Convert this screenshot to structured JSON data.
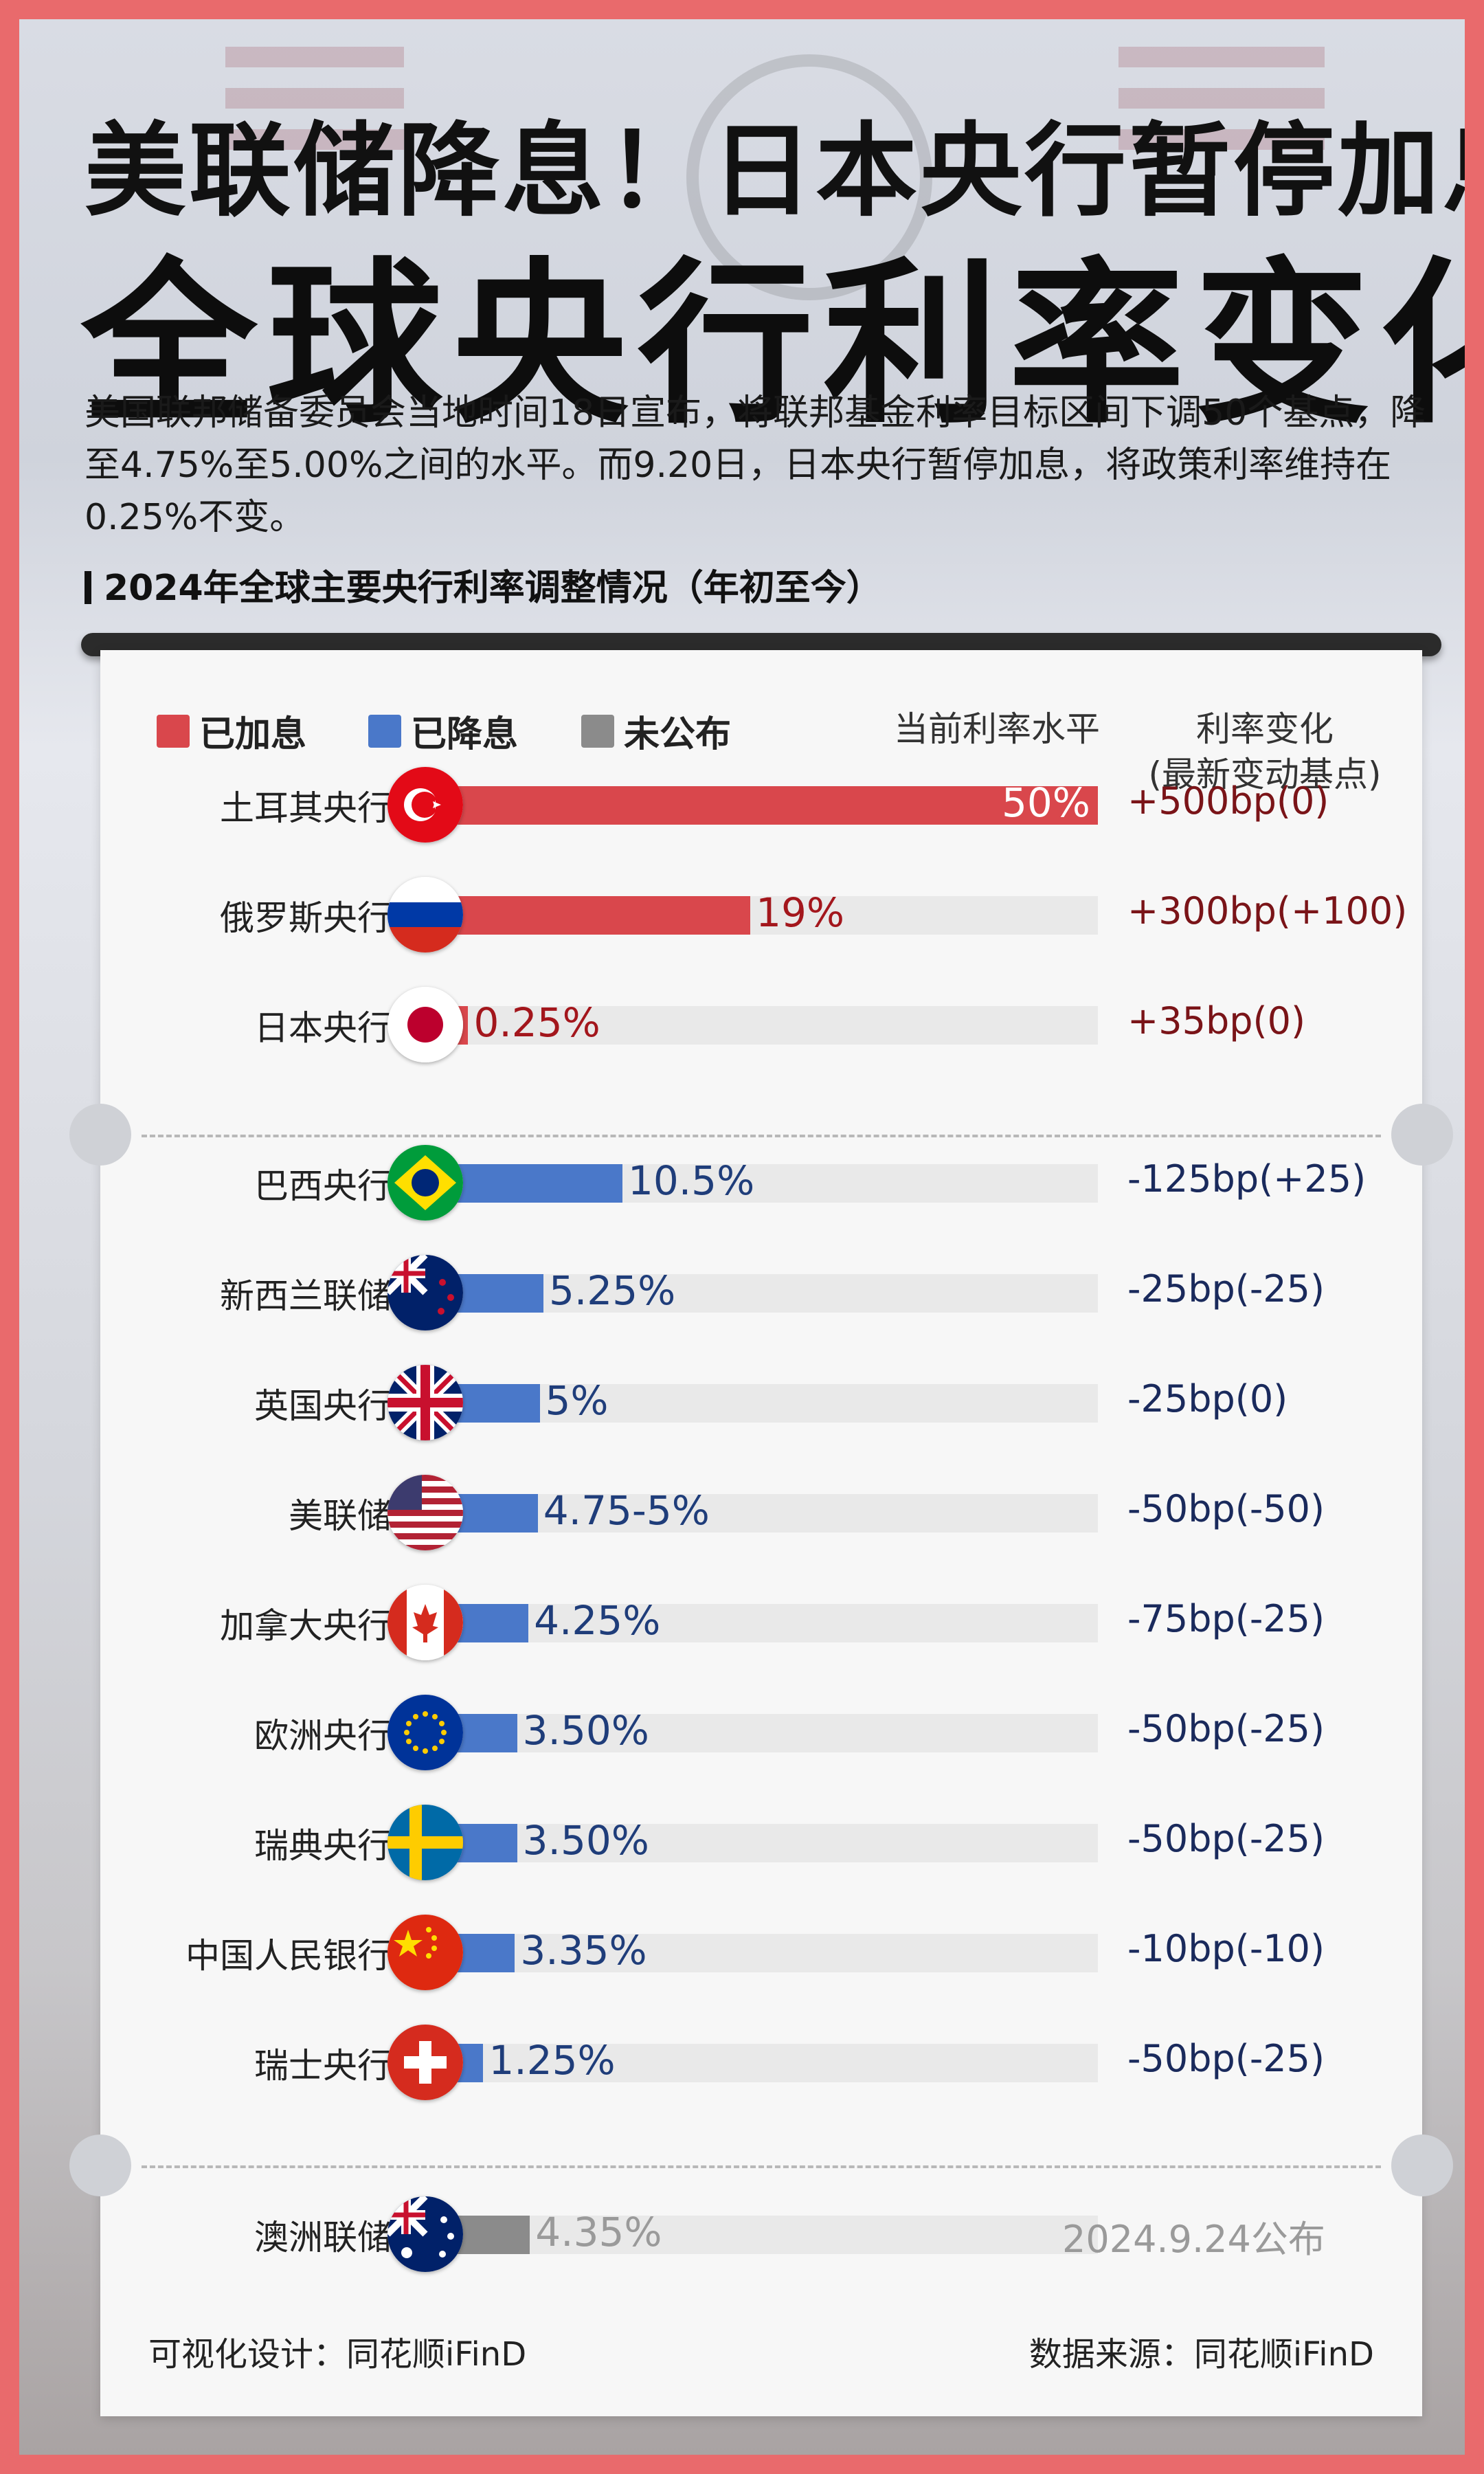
{
  "headline_line1": "美联储降息！日本央行暂停加息",
  "headline_line2": "全球央行利率变化",
  "lead": "美国联邦储备委员会当地时间18日宣布，将联邦基金利率目标区间下调50个基点，降至4.75%至5.00%之间的水平。而9.20日，日本央行暂停加息，将政策利率维持在0.25%不变。",
  "section_title": "2024年全球主要央行利率调整情况（年初至今）",
  "legend": {
    "hiked": "已加息",
    "cut": "已降息",
    "pending": "未公布"
  },
  "columns": {
    "current_rate": "当前利率水平",
    "change_line1": "利率变化",
    "change_line2": "(最新变动基点)"
  },
  "colors": {
    "hiked": "#d9474c",
    "cut": "#4a78c9",
    "pending": "#8b8b8b",
    "hiked_text": "#7a1418",
    "cut_text": "#1a2a5c",
    "pending_text": "#9a9a9a"
  },
  "chart_data": {
    "type": "bar",
    "title": "2024年全球主要央行利率调整情况（年初至今）",
    "value_axis_max_percent": 50,
    "banks": [
      {
        "name": "土耳其央行",
        "flag": "turkey",
        "status": "hiked",
        "rate_label": "50%",
        "rate_value": 50,
        "change": "+500bp(0)"
      },
      {
        "name": "俄罗斯央行",
        "flag": "russia",
        "status": "hiked",
        "rate_label": "19%",
        "rate_value": 19,
        "change": "+300bp(+100)"
      },
      {
        "name": "日本央行",
        "flag": "japan",
        "status": "hiked",
        "rate_label": "0.25%",
        "rate_value": 0.25,
        "change": "+35bp(0)"
      },
      {
        "name": "巴西央行",
        "flag": "brazil",
        "status": "cut",
        "rate_label": "10.5%",
        "rate_value": 10.5,
        "change": "-125bp(+25)"
      },
      {
        "name": "新西兰联储",
        "flag": "new-zealand",
        "status": "cut",
        "rate_label": "5.25%",
        "rate_value": 5.25,
        "change": "-25bp(-25)"
      },
      {
        "name": "英国央行",
        "flag": "uk",
        "status": "cut",
        "rate_label": "5%",
        "rate_value": 5,
        "change": "-25bp(0)"
      },
      {
        "name": "美联储",
        "flag": "usa",
        "status": "cut",
        "rate_label": "4.75-5%",
        "rate_value": 4.875,
        "change": "-50bp(-50)"
      },
      {
        "name": "加拿大央行",
        "flag": "canada",
        "status": "cut",
        "rate_label": "4.25%",
        "rate_value": 4.25,
        "change": "-75bp(-25)"
      },
      {
        "name": "欧洲央行",
        "flag": "eu",
        "status": "cut",
        "rate_label": "3.50%",
        "rate_value": 3.5,
        "change": "-50bp(-25)"
      },
      {
        "name": "瑞典央行",
        "flag": "sweden",
        "status": "cut",
        "rate_label": "3.50%",
        "rate_value": 3.5,
        "change": "-50bp(-25)"
      },
      {
        "name": "中国人民银行",
        "flag": "china",
        "status": "cut",
        "rate_label": "3.35%",
        "rate_value": 3.35,
        "change": "-10bp(-10)"
      },
      {
        "name": "瑞士央行",
        "flag": "switzerland",
        "status": "cut",
        "rate_label": "1.25%",
        "rate_value": 1.25,
        "change": "-50bp(-25)"
      },
      {
        "name": "澳洲联储",
        "flag": "australia",
        "status": "pending",
        "rate_label": "4.35%",
        "rate_value": 4.35,
        "change": "2024.9.24公布"
      }
    ]
  },
  "footer": {
    "design": "可视化设计：同花顺iFinD",
    "source": "数据来源：同花顺iFinD"
  }
}
